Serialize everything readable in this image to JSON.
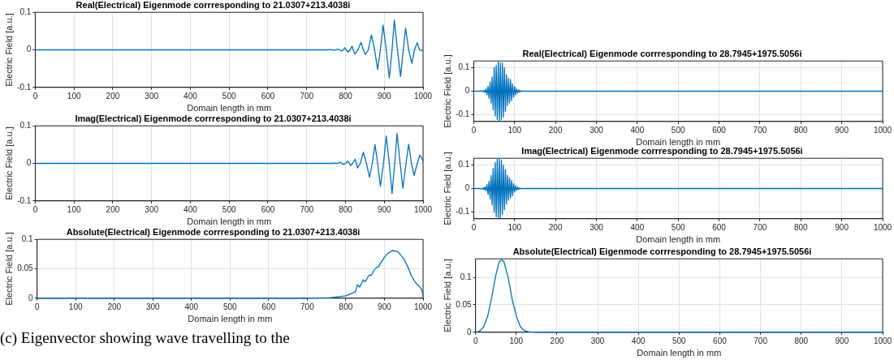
{
  "chart_data": [
    {
      "type": "line",
      "title": "Real(Electrical) Eigenmode corrresponding to 21.0307+213.4038i",
      "xlabel": "Domain length in mm",
      "ylabel": "Electric Field [a.u.]",
      "color": "#0072bd",
      "grid": true,
      "xlim": [
        0,
        1000
      ],
      "ylim": [
        -0.1,
        0.1
      ],
      "xticks": [
        0,
        100,
        200,
        300,
        400,
        500,
        600,
        700,
        800,
        900,
        1000
      ],
      "yticks": [
        -0.1,
        0,
        0.1
      ],
      "x": [
        0,
        700,
        750,
        760,
        765,
        770,
        775,
        780,
        785,
        790,
        795,
        798,
        802,
        807,
        812,
        817,
        820,
        824,
        832,
        840,
        846,
        851,
        859,
        867,
        875,
        883,
        890,
        897,
        905,
        913,
        920,
        926,
        934,
        942,
        949,
        955,
        963,
        971,
        978,
        985,
        991,
        996,
        1000
      ],
      "values": [
        0,
        0,
        0,
        0.001,
        0,
        -0.001,
        0,
        0.002,
        0,
        -0.003,
        0,
        0.006,
        0,
        -0.006,
        0,
        0.01,
        0,
        -0.011,
        0,
        0.02,
        0,
        -0.012,
        0,
        0.04,
        0,
        -0.052,
        0,
        0.066,
        0,
        -0.075,
        0,
        0.079,
        0,
        -0.071,
        0,
        0.058,
        0,
        -0.036,
        0,
        0.019,
        0,
        -0.002,
        0
      ]
    },
    {
      "type": "line",
      "title": "Imag(Electrical) Eigenmode corrresponding to 21.0307+213.4038i",
      "xlabel": "Domain length in mm",
      "ylabel": "Electric Field [a.u.]",
      "color": "#0072bd",
      "grid": true,
      "xlim": [
        0,
        1000
      ],
      "ylim": [
        -0.1,
        0.1
      ],
      "xticks": [
        0,
        100,
        200,
        300,
        400,
        500,
        600,
        700,
        800,
        900,
        1000
      ],
      "yticks": [
        -0.1,
        0,
        0.1
      ],
      "x": [
        0,
        700,
        750,
        770,
        775,
        780,
        787,
        791,
        795,
        800,
        806,
        810,
        813,
        818,
        825,
        828,
        831,
        838,
        846,
        854,
        862,
        869,
        876,
        883,
        890,
        898,
        905,
        913,
        920,
        927,
        933,
        941,
        948,
        956,
        963,
        970,
        977,
        985,
        992,
        1000
      ],
      "values": [
        0,
        0,
        0,
        0,
        0.001,
        0,
        0.003,
        0,
        -0.003,
        0,
        0.006,
        0,
        -0.006,
        0,
        0.011,
        0,
        -0.012,
        0,
        0.03,
        0,
        -0.037,
        0,
        0.05,
        0,
        -0.061,
        0,
        0.073,
        0,
        -0.08,
        0,
        0.08,
        0,
        -0.066,
        0,
        0.051,
        0,
        -0.032,
        0,
        0.022,
        0.007
      ]
    },
    {
      "type": "line",
      "title": "Absolute(Electrical) Eigenmode corrresponding to 21.0307+213.4038i",
      "xlabel": "Domain length in mm",
      "ylabel": "Electric Field [a.u.]",
      "color": "#0072bd",
      "grid": true,
      "xlim": [
        0,
        1000
      ],
      "ylim": [
        0,
        0.1
      ],
      "xticks": [
        0,
        100,
        200,
        300,
        400,
        500,
        600,
        700,
        800,
        900,
        1000
      ],
      "yticks": [
        0,
        0.05,
        0.1
      ],
      "x": [
        0,
        700,
        760,
        800,
        825,
        830,
        836,
        845,
        850,
        860,
        866,
        875,
        885,
        895,
        905,
        920,
        935,
        950,
        960,
        970,
        978,
        985,
        992,
        997,
        1000
      ],
      "values": [
        0,
        0,
        0.001,
        0.004,
        0.011,
        0.023,
        0.019,
        0.031,
        0.028,
        0.039,
        0.039,
        0.05,
        0.054,
        0.065,
        0.074,
        0.081,
        0.079,
        0.067,
        0.054,
        0.038,
        0.029,
        0.023,
        0.019,
        0.014,
        0.003
      ],
      "annotations": [
        "(c) Eigenvector showing wave travelling to the"
      ]
    },
    {
      "type": "line",
      "title": "Real(Electrical) Eigenmode corrresponding to 28.7945+1975.5056i",
      "xlabel": "Domain length in mm",
      "ylabel": "Electric Field [a.u.]",
      "color": "#0072bd",
      "grid": true,
      "xlim": [
        0,
        1000
      ],
      "ylim": [
        -0.128,
        0.128
      ],
      "xticks": [
        0,
        100,
        200,
        300,
        400,
        500,
        600,
        700,
        800,
        900,
        1000
      ],
      "yticks": [
        -0.1,
        0,
        0.1
      ],
      "x": [
        0,
        15,
        20,
        22.5,
        25,
        27.5,
        30,
        32.5,
        35,
        37.5,
        40,
        42.5,
        45,
        47.5,
        50,
        52.5,
        55,
        57.5,
        60,
        62.5,
        65,
        67.5,
        70,
        72.5,
        75,
        77.5,
        80,
        82.5,
        85,
        87.5,
        90,
        92.5,
        95,
        97.5,
        100,
        102.5,
        105,
        107.5,
        110,
        112.5,
        115,
        117.5,
        120,
        125,
        1000
      ],
      "values": [
        0,
        0,
        0.002,
        -0.003,
        0.004,
        -0.006,
        0.01,
        -0.015,
        0.02,
        -0.03,
        0.04,
        -0.05,
        0.06,
        -0.08,
        0.1,
        -0.105,
        0.11,
        -0.12,
        0.125,
        -0.125,
        0.12,
        -0.12,
        0.12,
        -0.11,
        0.1,
        -0.085,
        0.07,
        -0.06,
        0.055,
        -0.05,
        0.05,
        -0.04,
        0.03,
        -0.025,
        0.02,
        -0.015,
        0.01,
        -0.008,
        0.006,
        -0.004,
        0.003,
        -0.002,
        0.001,
        0,
        0
      ]
    },
    {
      "type": "line",
      "title": "Imag(Electrical) Eigenmode corrresponding to 28.7945+1975.5056i",
      "xlabel": "Domain length in mm",
      "ylabel": "Electric Field [a.u.]",
      "color": "#0072bd",
      "grid": true,
      "xlim": [
        0,
        1000
      ],
      "ylim": [
        -0.128,
        0.128
      ],
      "xticks": [
        0,
        100,
        200,
        300,
        400,
        500,
        600,
        700,
        800,
        900,
        1000
      ],
      "yticks": [
        -0.1,
        0,
        0.1
      ],
      "x": [
        0,
        15,
        20,
        22.5,
        25,
        27.5,
        30,
        32.5,
        35,
        37.5,
        40,
        42.5,
        45,
        47.5,
        50,
        52.5,
        55,
        57.5,
        60,
        62.5,
        65,
        67.5,
        70,
        72.5,
        75,
        77.5,
        80,
        82.5,
        85,
        87.5,
        90,
        92.5,
        95,
        97.5,
        100,
        102.5,
        105,
        107.5,
        110,
        112.5,
        115,
        117.5,
        120,
        125,
        1000
      ],
      "values": [
        0,
        0,
        -0.002,
        0.003,
        -0.005,
        0.007,
        -0.01,
        0.016,
        -0.025,
        0.03,
        -0.045,
        0.055,
        -0.07,
        0.085,
        -0.1,
        0.11,
        -0.12,
        0.125,
        -0.125,
        0.125,
        -0.125,
        0.12,
        -0.11,
        0.1,
        -0.09,
        0.08,
        -0.065,
        0.055,
        -0.05,
        0.045,
        -0.04,
        0.035,
        -0.03,
        0.02,
        -0.015,
        0.012,
        -0.008,
        0.006,
        -0.004,
        0.003,
        -0.002,
        0.001,
        -0.001,
        0,
        0
      ]
    },
    {
      "type": "line",
      "title": "Absolute(Electrical) Eigenmode corrresponding to 28.7945+1975.5056i",
      "xlabel": "Domain length in mm",
      "ylabel": "Electric Field [a.u.]",
      "color": "#0072bd",
      "grid": true,
      "xlim": [
        0,
        1000
      ],
      "ylim": [
        0,
        0.134
      ],
      "xticks": [
        0,
        100,
        200,
        300,
        400,
        500,
        600,
        700,
        800,
        900,
        1000
      ],
      "yticks": [
        0,
        0.05,
        0.1
      ],
      "x": [
        0,
        10,
        20,
        30,
        40,
        50,
        58,
        64,
        70,
        80,
        90,
        100,
        110,
        120,
        130,
        150,
        1000
      ],
      "values": [
        0,
        0.002,
        0.01,
        0.03,
        0.065,
        0.105,
        0.128,
        0.133,
        0.128,
        0.1,
        0.06,
        0.03,
        0.01,
        0.003,
        0.001,
        0,
        0
      ]
    }
  ]
}
